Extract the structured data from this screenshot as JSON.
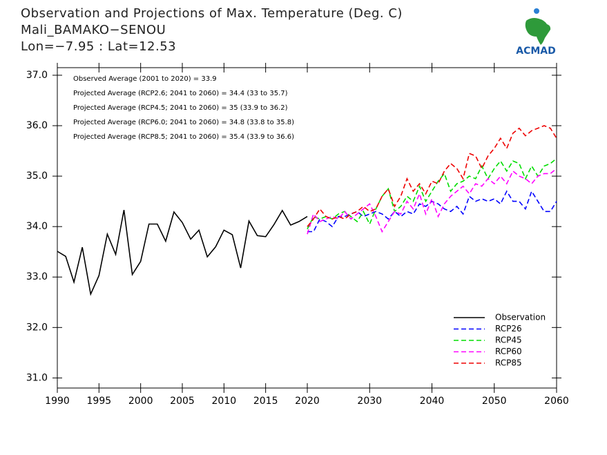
{
  "chart_data": [
    {
      "type": "line",
      "title": "Observation and Projections of Max. Temperature (Deg. C)",
      "subtitle": [
        "Mali_BAMAKO−SENOU",
        "Lon=−7.95 : Lat=12.53"
      ],
      "logo_text": "ACMAD",
      "x": [
        1990,
        1991,
        1992,
        1993,
        1994,
        1995,
        1996,
        1997,
        1998,
        1999,
        2000,
        2001,
        2002,
        2003,
        2004,
        2005,
        2006,
        2007,
        2008,
        2009,
        2010,
        2011,
        2012,
        2013,
        2014,
        2015,
        2016,
        2017,
        2018,
        2019,
        2020
      ],
      "series": [
        {
          "name": "Observation",
          "color": "#000000",
          "dashed": false,
          "values": [
            33.51,
            33.41,
            32.9,
            33.59,
            32.66,
            33.03,
            33.85,
            33.45,
            34.33,
            33.05,
            33.31,
            34.05,
            34.05,
            33.71,
            34.29,
            34.08,
            33.75,
            33.93,
            33.4,
            33.6,
            33.93,
            33.84,
            33.18,
            34.11,
            33.82,
            33.8,
            34.04,
            34.32,
            34.03,
            34.1,
            34.2
          ]
        }
      ],
      "xlim": [
        1990,
        2020
      ],
      "xticks": [
        1990,
        1995,
        2000,
        2005,
        2010,
        2015
      ],
      "ylim": [
        30.8,
        37.15
      ],
      "yticks": [
        {
          "value": 31,
          "label": "31.0"
        },
        {
          "value": 32,
          "label": "32.0"
        },
        {
          "value": 33,
          "label": "33.0"
        },
        {
          "value": 34,
          "label": "34.0"
        },
        {
          "value": 35,
          "label": "35.0"
        },
        {
          "value": 36,
          "label": "36.0"
        },
        {
          "value": 37,
          "label": "37.0"
        }
      ],
      "legend": "lower right"
    },
    {
      "type": "line",
      "annotations": [
        "Observed Average (2001 to 2020) = 33.9",
        "Projected Average (RCP2.6; 2041 to 2060) = 34.4 (33 to 35.7)",
        "Projected Average (RCP4.5; 2041 to 2060) = 35 (33.9 to 36.2)",
        "Projected Average (RCP6.0; 2041 to 2060) = 34.8 (33.8 to 35.8)",
        "Projected Average (RCP8.5; 2041 to 2060) = 35.4 (33.9 to 36.6)"
      ],
      "x": [
        2020,
        2021,
        2022,
        2023,
        2024,
        2025,
        2026,
        2027,
        2028,
        2029,
        2030,
        2031,
        2032,
        2033,
        2034,
        2035,
        2036,
        2037,
        2038,
        2039,
        2040,
        2041,
        2042,
        2043,
        2044,
        2045,
        2046,
        2047,
        2048,
        2049,
        2050,
        2051,
        2052,
        2053,
        2054,
        2055,
        2056,
        2057,
        2058,
        2059,
        2060
      ],
      "series": [
        {
          "name": "RCP26",
          "color": "#0000ff",
          "dashed": true,
          "values": [
            33.9,
            33.9,
            34.15,
            34.1,
            34.0,
            34.2,
            34.2,
            34.25,
            34.3,
            34.2,
            34.25,
            34.3,
            34.25,
            34.15,
            34.3,
            34.2,
            34.3,
            34.25,
            34.45,
            34.4,
            34.5,
            34.45,
            34.35,
            34.3,
            34.4,
            34.25,
            34.6,
            34.5,
            34.55,
            34.5,
            34.55,
            34.45,
            34.7,
            34.5,
            34.5,
            34.35,
            34.7,
            34.5,
            34.3,
            34.3,
            34.5
          ]
        },
        {
          "name": "RCP45",
          "color": "#00dd00",
          "dashed": true,
          "values": [
            33.95,
            34.2,
            34.15,
            34.2,
            34.15,
            34.25,
            34.3,
            34.2,
            34.1,
            34.3,
            34.05,
            34.35,
            34.6,
            34.75,
            34.3,
            34.4,
            34.6,
            34.5,
            34.8,
            34.5,
            34.7,
            34.9,
            35.05,
            34.7,
            34.85,
            34.9,
            35.0,
            34.95,
            35.2,
            34.95,
            35.15,
            35.3,
            35.1,
            35.3,
            35.25,
            34.95,
            35.2,
            35.0,
            35.2,
            35.25,
            35.35
          ]
        },
        {
          "name": "RCP60",
          "color": "#ff00ff",
          "dashed": true,
          "values": [
            33.85,
            34.25,
            34.1,
            34.15,
            34.2,
            34.15,
            34.3,
            34.15,
            34.25,
            34.35,
            34.45,
            34.2,
            33.9,
            34.1,
            34.3,
            34.25,
            34.5,
            34.35,
            34.65,
            34.25,
            34.55,
            34.2,
            34.45,
            34.6,
            34.7,
            34.8,
            34.65,
            34.85,
            34.8,
            34.95,
            34.85,
            35.0,
            34.85,
            35.1,
            35.0,
            34.95,
            34.85,
            35.0,
            35.05,
            35.05,
            35.15
          ]
        },
        {
          "name": "RCP85",
          "color": "#ee0000",
          "dashed": true,
          "values": [
            34.0,
            34.15,
            34.35,
            34.2,
            34.15,
            34.2,
            34.15,
            34.25,
            34.3,
            34.4,
            34.3,
            34.35,
            34.6,
            34.75,
            34.4,
            34.6,
            34.95,
            34.7,
            34.85,
            34.65,
            34.9,
            34.85,
            35.1,
            35.25,
            35.15,
            34.95,
            35.45,
            35.4,
            35.15,
            35.4,
            35.55,
            35.75,
            35.55,
            35.85,
            35.95,
            35.8,
            35.9,
            35.95,
            36.0,
            35.95,
            35.75
          ]
        }
      ],
      "xlim": [
        2020,
        2060
      ],
      "xticks": [
        2020,
        2030,
        2040,
        2050,
        2060
      ]
    }
  ]
}
